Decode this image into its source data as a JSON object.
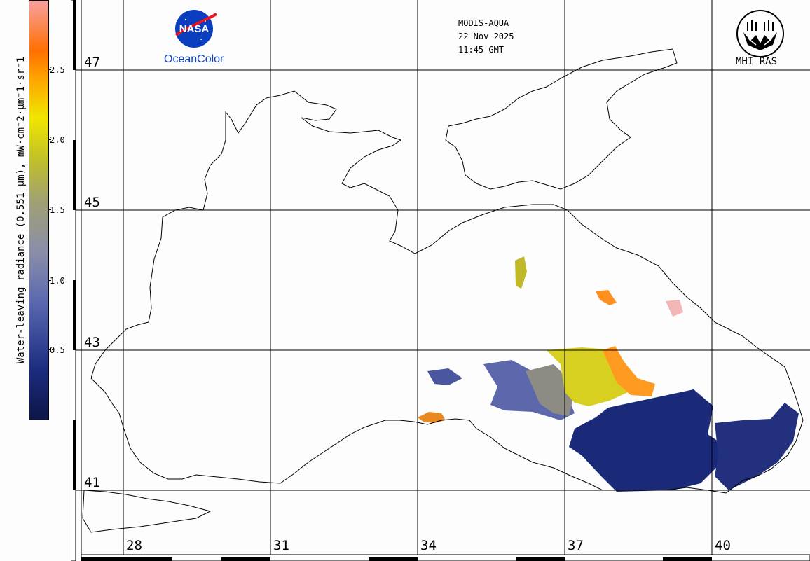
{
  "colorbar": {
    "title": "Water-leaving radiance (0.551 µm), mW·cm⁻2·µm⁻1·sr⁻1",
    "ticks": [
      "2.5",
      "2.0",
      "1.5",
      "1.0",
      "0.5"
    ],
    "tick_values": [
      2.5,
      2.0,
      1.5,
      1.0,
      0.5
    ],
    "range": [
      0,
      2.99
    ],
    "colors": [
      "#0c1648",
      "#1c2c80",
      "#5a68b0",
      "#8a8ea8",
      "#a0a074",
      "#c0c02a",
      "#f0e600",
      "#ffa000",
      "#ff7000",
      "#f8a0a0"
    ]
  },
  "map": {
    "lat_labels": [
      "47",
      "45",
      "43",
      "41"
    ],
    "lon_labels": [
      "28",
      "31",
      "34",
      "37",
      "40"
    ],
    "land_color": "#fdfdfd",
    "coast_color": "#000000",
    "grid_color": "#000000"
  },
  "header": {
    "nasa_logo_text": "NASA",
    "oceancolor": "OceanColor",
    "sensor": "MODIS-AQUA",
    "date": "22 Nov 2025",
    "time": "11:45 GMT",
    "institution": "MHI RAS"
  }
}
